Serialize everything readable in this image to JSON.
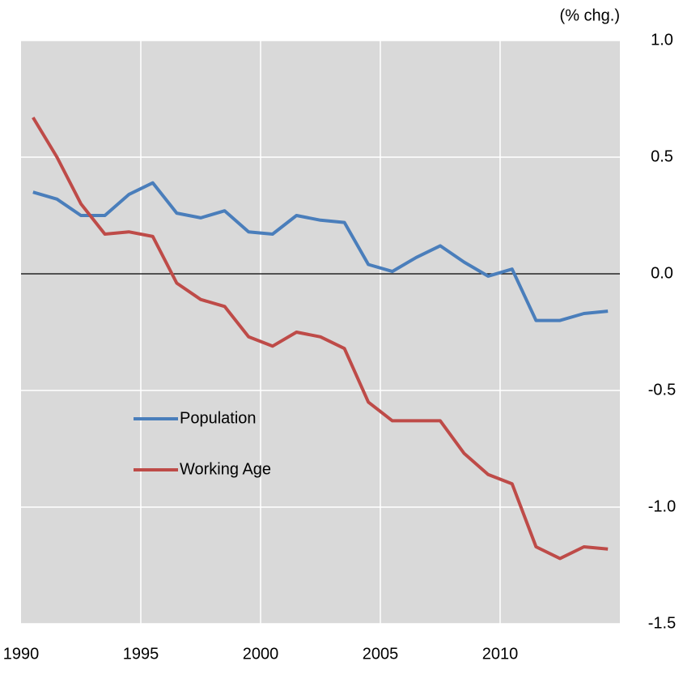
{
  "chart_data": {
    "type": "line",
    "unit_label": "(% chg.)",
    "categories": [
      "1990",
      null,
      null,
      null,
      null,
      "1995",
      null,
      null,
      null,
      null,
      "2000",
      null,
      null,
      null,
      null,
      "2005",
      null,
      null,
      null,
      null,
      "2010",
      null,
      null,
      null,
      null
    ],
    "series": [
      {
        "name": "Population",
        "color": "#4a7ebb",
        "values": [
          0.35,
          0.32,
          0.25,
          0.25,
          0.34,
          0.39,
          0.26,
          0.24,
          0.27,
          0.18,
          0.17,
          0.25,
          0.23,
          0.22,
          0.04,
          0.01,
          0.07,
          0.12,
          0.05,
          -0.01,
          0.02,
          -0.2,
          -0.2,
          -0.17,
          -0.16
        ]
      },
      {
        "name": "Working Age",
        "color": "#be4b48",
        "values": [
          0.67,
          0.5,
          0.3,
          0.17,
          0.18,
          0.16,
          -0.04,
          -0.11,
          -0.14,
          -0.27,
          -0.31,
          -0.25,
          -0.27,
          -0.32,
          -0.55,
          -0.63,
          -0.63,
          -0.63,
          -0.77,
          -0.86,
          -0.9,
          -1.17,
          -1.22,
          -1.17,
          -1.18
        ]
      }
    ],
    "ylim": [
      -1.5,
      1.0
    ],
    "yticks": [
      {
        "value": 1.0,
        "label": "1.0"
      },
      0.5,
      {
        "value": 0,
        "label": "0.0"
      },
      -0.5,
      {
        "value": -1.0,
        "label": "-1.0"
      },
      -1.5
    ],
    "grid": true,
    "legend": "inside-left"
  }
}
